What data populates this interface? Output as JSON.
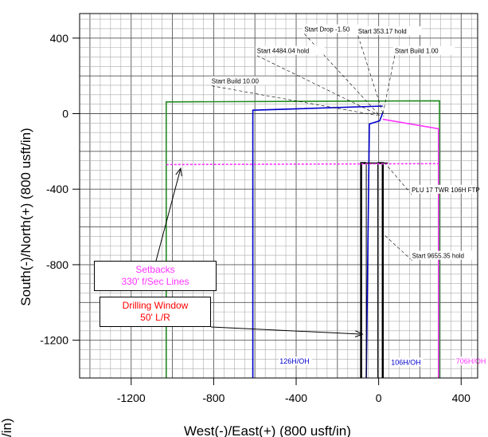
{
  "chart_data": {
    "type": "line",
    "xlabel": "West(-)/East(+) (800 usft/in)",
    "ylabel": "South(-)/North(+) (800 usft/in)",
    "xlim": [
      -1450,
      480
    ],
    "ylim": [
      -1400,
      530
    ],
    "xticks": [
      -1200,
      -800,
      -400,
      0,
      400
    ],
    "yticks": [
      400,
      0,
      -400,
      -800,
      -1200
    ],
    "grid": true,
    "lines": [
      {
        "id": "setback-box",
        "color": "#228B22",
        "points": [
          [
            -1030,
            -1400
          ],
          [
            -1030,
            62
          ],
          [
            295,
            68
          ],
          [
            295,
            -1400
          ]
        ]
      },
      {
        "id": "plan-126h",
        "color": "#0000CD",
        "points": [
          [
            -610,
            -1400
          ],
          [
            -610,
            18
          ],
          [
            20,
            40
          ]
        ]
      },
      {
        "id": "plan-106h-a",
        "color": "#0000CD",
        "points": [
          [
            -60,
            -1400
          ],
          [
            -45,
            -55
          ],
          [
            5,
            -38
          ],
          [
            20,
            5
          ]
        ]
      },
      {
        "id": "plan-706h",
        "color": "#FF33FF",
        "points": [
          [
            20,
            -30
          ],
          [
            290,
            -80
          ],
          [
            290,
            -1400
          ]
        ]
      },
      {
        "id": "dw-left",
        "color": "#000000",
        "width": 2.5,
        "points": [
          [
            -85,
            -1400
          ],
          [
            -85,
            -262
          ],
          [
            -60,
            -262
          ]
        ]
      },
      {
        "id": "dw-right",
        "color": "#000000",
        "width": 2.5,
        "points": [
          [
            20,
            -1400
          ],
          [
            20,
            -262
          ],
          [
            -5,
            -262
          ]
        ]
      },
      {
        "id": "dw-inner-l",
        "color": "#000000",
        "width": 1,
        "points": [
          [
            -60,
            -1400
          ],
          [
            -60,
            -262
          ]
        ]
      },
      {
        "id": "dw-inner-r",
        "color": "#000000",
        "width": 1,
        "points": [
          [
            -5,
            -1400
          ],
          [
            -5,
            -262
          ]
        ]
      },
      {
        "id": "target-line",
        "color": "#000000",
        "width": 1.5,
        "points": [
          [
            -70,
            -262
          ],
          [
            45,
            -262
          ]
        ]
      },
      {
        "id": "setback-dash",
        "color": "#FF33FF",
        "dash": true,
        "points": [
          [
            -1030,
            -270
          ],
          [
            290,
            -265
          ]
        ]
      }
    ],
    "annotations": [
      {
        "text": "Start Drop -1.50",
        "x": -360,
        "y": 435,
        "tx": 5,
        "ty": -10
      },
      {
        "text": "Start 353.17 hold",
        "x": -100,
        "y": 425,
        "tx": 25,
        "ty": -15
      },
      {
        "text": "Start 4484.04 hold",
        "x": -590,
        "y": 320,
        "tx": 5,
        "ty": -10
      },
      {
        "text": "Start Build 1.00",
        "x": 78,
        "y": 320,
        "tx": 20,
        "ty": -5
      },
      {
        "text": "Start Build 10.00",
        "x": -810,
        "y": 160,
        "tx": -5,
        "ty": -10
      },
      {
        "text": "PLU 17 TWR 106H FTP",
        "x": 160,
        "y": -415,
        "tx": 30,
        "ty": -262
      },
      {
        "text": "Start 9655.35 hold",
        "x": 162,
        "y": -765,
        "tx": 25,
        "ty": -640
      }
    ],
    "well_labels": [
      {
        "text": "126H/OH",
        "x": -480,
        "y": -1325,
        "color": "#0000CD"
      },
      {
        "text": "106H/OH",
        "x": 60,
        "y": -1330,
        "color": "#0000CD"
      },
      {
        "text": "706H/OH",
        "x": 375,
        "y": -1325,
        "color": "#FF33FF"
      }
    ],
    "callouts": [
      {
        "id": "setbacks",
        "lines": [
          "Setbacks",
          "330' f/Sec Lines"
        ],
        "color": "#FF33FF",
        "target": [
          -960,
          -290
        ]
      },
      {
        "id": "drilling-window",
        "lines": [
          "Drilling Window",
          "50' L/R"
        ],
        "color": "#FF0000",
        "target": [
          -78,
          -1168
        ]
      }
    ]
  },
  "clipped_label": "/in)"
}
